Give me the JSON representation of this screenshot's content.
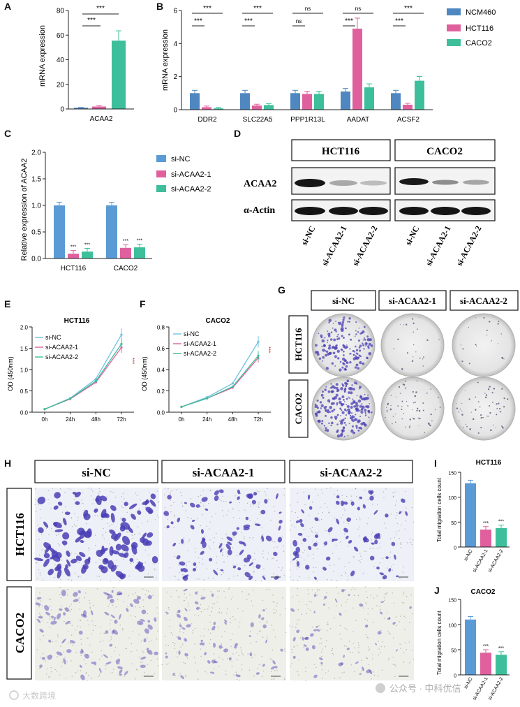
{
  "colors": {
    "ncm460": "#4f87c0",
    "hct116": "#e0609e",
    "caco2": "#3dbf9b",
    "si_nc": "#5b9bd5",
    "si1": "#e0609e",
    "si2": "#3dbf9b",
    "stain": "#4a3fb5",
    "line_nc": "#6fc3e0",
    "line_1": "#e0609e",
    "line_2": "#3dbf9b"
  },
  "panel_letters": [
    "A",
    "B",
    "C",
    "D",
    "E",
    "F",
    "G",
    "H",
    "I",
    "J"
  ],
  "panel_a": {
    "ylabel": "mRNA expression",
    "yticks": [
      "0",
      "20",
      "40",
      "60",
      "80"
    ],
    "category": "ACAA2",
    "values": [
      1.0,
      2.0,
      55.5
    ],
    "errors": [
      0.3,
      0.8,
      8.0
    ],
    "sig": [
      "***",
      "***"
    ]
  },
  "panel_b": {
    "ylabel": "mRNA expression",
    "yticks": [
      "0",
      "2",
      "4",
      "6"
    ],
    "categories": [
      "DDR2",
      "SLC22A5",
      "PPP1R13L",
      "AADAT",
      "ACSF2"
    ],
    "series": [
      {
        "name": "NCM460",
        "values": [
          1.0,
          1.0,
          1.0,
          1.1,
          1.0
        ]
      },
      {
        "name": "HCT116",
        "values": [
          0.15,
          0.25,
          0.95,
          4.9,
          0.3
        ]
      },
      {
        "name": "CACO2",
        "values": [
          0.08,
          0.28,
          0.95,
          1.35,
          1.75
        ]
      }
    ],
    "sig_top": [
      "***",
      "***",
      "ns",
      "ns",
      "***"
    ],
    "sig_bottom": [
      "***",
      "***",
      "ns",
      "***",
      "***"
    ]
  },
  "legend_ab": [
    "NCM460",
    "HCT116",
    "CACO2"
  ],
  "panel_c": {
    "ylabel": "Relative expression of ACAA2",
    "yticks": [
      "0.0",
      "0.5",
      "1.0",
      "1.5",
      "2.0"
    ],
    "categories": [
      "HCT116",
      "CACO2"
    ],
    "series": [
      {
        "name": "si-NC",
        "values": [
          1.0,
          1.0
        ]
      },
      {
        "name": "si-ACAA2-1",
        "values": [
          0.09,
          0.2
        ]
      },
      {
        "name": "si-ACAA2-2",
        "values": [
          0.13,
          0.21
        ]
      }
    ],
    "sig": "***"
  },
  "panel_d": {
    "cell_lines": [
      "HCT116",
      "CACO2"
    ],
    "rows": [
      "ACAA2",
      "α-Actin"
    ],
    "lanes": [
      "si-NC",
      "si-ACAA2-1",
      "si-ACAA2-2",
      "si-NC",
      "si-ACAA2-1",
      "si-ACAA2-2"
    ]
  },
  "panel_e": {
    "title": "HCT116",
    "ylabel": "OD (450nm)",
    "yticks": [
      "0.0",
      "0.5",
      "1.0",
      "1.5",
      "2.0"
    ],
    "x": [
      "0h",
      "24h",
      "48h",
      "72h"
    ],
    "series": [
      {
        "name": "si-NC",
        "values": [
          0.07,
          0.33,
          0.78,
          1.82
        ]
      },
      {
        "name": "si-ACAA2-1",
        "values": [
          0.07,
          0.31,
          0.7,
          1.52
        ]
      },
      {
        "name": "si-ACAA2-2",
        "values": [
          0.07,
          0.32,
          0.73,
          1.6
        ]
      }
    ],
    "sig": "***"
  },
  "panel_f": {
    "title": "CACO2",
    "ylabel": "OD (450nm)",
    "yticks": [
      "0.0",
      "0.2",
      "0.4",
      "0.6",
      "0.8"
    ],
    "x": [
      "0h",
      "24h",
      "48h",
      "72h"
    ],
    "series": [
      {
        "name": "si-NC",
        "values": [
          0.05,
          0.14,
          0.27,
          0.66
        ]
      },
      {
        "name": "si-ACAA2-1",
        "values": [
          0.05,
          0.13,
          0.23,
          0.51
        ]
      },
      {
        "name": "si-ACAA2-2",
        "values": [
          0.05,
          0.13,
          0.24,
          0.53
        ]
      }
    ],
    "sig": "***"
  },
  "panel_g": {
    "columns": [
      "si-NC",
      "si-ACAA2-1",
      "si-ACAA2-2"
    ],
    "rows": [
      "HCT116",
      "CACO2"
    ]
  },
  "panel_h": {
    "columns": [
      "si-NC",
      "si-ACAA2-1",
      "si-ACAA2-2"
    ],
    "rows": [
      "HCT116",
      "CACO2"
    ]
  },
  "panel_i": {
    "title": "HCT116",
    "ylabel": "Total migration cells count",
    "yticks": [
      "0",
      "50",
      "100",
      "150"
    ],
    "categories": [
      "si-NC",
      "si-ACAA2-1",
      "si-ACAA2-2"
    ],
    "values": [
      128,
      35,
      38
    ],
    "sig": "***"
  },
  "panel_j": {
    "title": "CACO2",
    "ylabel": "Total migration cells count",
    "yticks": [
      "0",
      "50",
      "100",
      "150"
    ],
    "categories": [
      "si-NC",
      "si-ACAA2-1",
      "si-ACAA2-2"
    ],
    "values": [
      110,
      44,
      40
    ],
    "sig": "***"
  },
  "watermark_left": "大数跨境",
  "watermark_right": "公众号 · 中科优信"
}
